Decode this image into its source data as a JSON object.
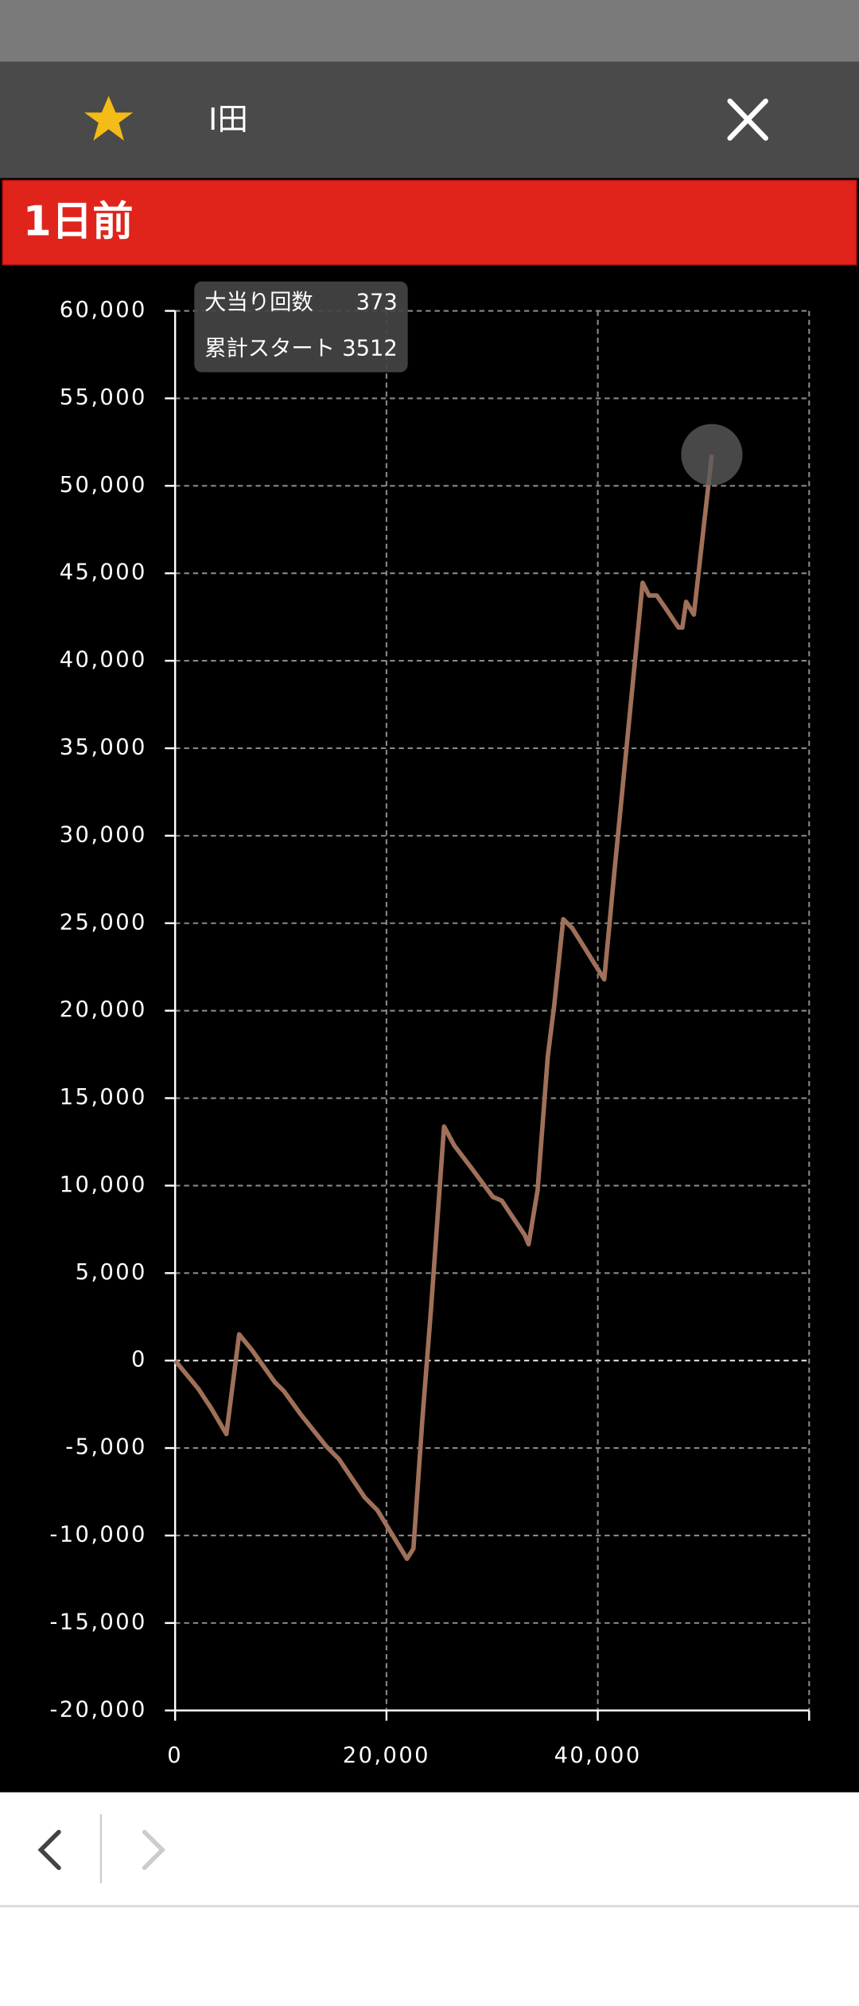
{
  "header": {
    "title": "I田"
  },
  "banner": "1日前",
  "tooltip": {
    "rows": [
      {
        "label": "大当り回数",
        "value": 373
      },
      {
        "label": "累計スタート",
        "value": 3512
      }
    ]
  },
  "chart_data": {
    "type": "line",
    "color": "#a0705a",
    "grid": true,
    "x": [
      0,
      2180,
      3390,
      4850,
      6060,
      7270,
      9450,
      10300,
      11880,
      14300,
      15500,
      17940,
      19150,
      21940,
      22550,
      23390,
      24240,
      25450,
      26420,
      28000,
      30060,
      30910,
      31880,
      33090,
      33450,
      34300,
      35270,
      35880,
      36730,
      37580,
      40610,
      41580,
      44240,
      44850,
      45580,
      46420,
      47640,
      48000,
      48360,
      49090,
      50790
    ],
    "values": [
      0,
      -1600,
      -2700,
      -4200,
      1500,
      600,
      -1250,
      -1750,
      -3070,
      -4900,
      -5630,
      -7820,
      -8560,
      -11330,
      -10750,
      -3440,
      3140,
      13380,
      12290,
      11040,
      9360,
      9140,
      8260,
      7170,
      6650,
      9730,
      17400,
      20330,
      25230,
      24720,
      21790,
      28000,
      44460,
      43730,
      43730,
      43000,
      41900,
      41900,
      43370,
      42640,
      51780
    ],
    "xlim": [
      0,
      60000
    ],
    "xticks": [
      0,
      {
        "value": 20000,
        "label": "20,000"
      },
      {
        "value": 40000,
        "label": "40,000"
      }
    ],
    "ylim": [
      -20000,
      60000
    ],
    "yticks": [
      {
        "value": -20000,
        "label": "-20,000"
      },
      {
        "value": -15000,
        "label": "-15,000"
      },
      {
        "value": -10000,
        "label": "-10,000"
      },
      {
        "value": -5000,
        "label": "-5,000"
      },
      0,
      {
        "value": 5000,
        "label": "5,000"
      },
      {
        "value": 10000,
        "label": "10,000"
      },
      {
        "value": 15000,
        "label": "15,000"
      },
      {
        "value": 20000,
        "label": "20,000"
      },
      {
        "value": 25000,
        "label": "25,000"
      },
      {
        "value": 30000,
        "label": "30,000"
      },
      {
        "value": 35000,
        "label": "35,000"
      },
      {
        "value": 40000,
        "label": "40,000"
      },
      {
        "value": 45000,
        "label": "45,000"
      },
      {
        "value": 50000,
        "label": "50,000"
      },
      {
        "value": 55000,
        "label": "55,000"
      },
      {
        "value": 60000,
        "label": "60,000"
      }
    ]
  }
}
